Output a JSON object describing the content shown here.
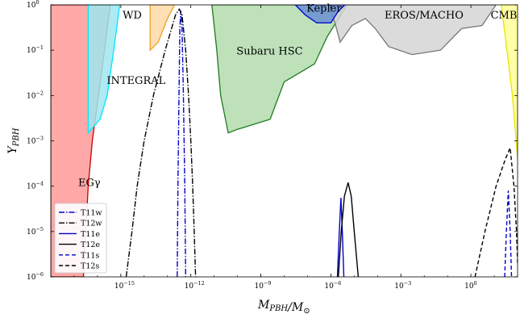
{
  "chart_data": {
    "type": "line",
    "xlabel": "M_PBH/M_⊙",
    "ylabel": "Y_PBH",
    "xscale": "log",
    "yscale": "log",
    "xlim": [
      1e-18,
      100
    ],
    "ylim": [
      1e-06,
      1
    ],
    "xticks": [
      {
        "value": 1e-15,
        "mant": "10",
        "exp": "−15"
      },
      {
        "value": 1e-12,
        "mant": "10",
        "exp": "−12"
      },
      {
        "value": 1e-09,
        "mant": "10",
        "exp": "−9"
      },
      {
        "value": 1e-06,
        "mant": "10",
        "exp": "−6"
      },
      {
        "value": 0.001,
        "mant": "10",
        "exp": "−3"
      },
      {
        "value": 1,
        "mant": "10",
        "exp": "0"
      },
      {
        "value": 1000,
        "mant": "10",
        "exp": "3"
      }
    ],
    "yticks": [
      {
        "value": 1e-06,
        "mant": "10",
        "exp": "−6"
      },
      {
        "value": 1e-05,
        "mant": "10",
        "exp": "−5"
      },
      {
        "value": 0.0001,
        "mant": "10",
        "exp": "−4"
      },
      {
        "value": 0.001,
        "mant": "10",
        "exp": "−3"
      },
      {
        "value": 0.01,
        "mant": "10",
        "exp": "−2"
      },
      {
        "value": 0.1,
        "mant": "10",
        "exp": "−1"
      },
      {
        "value": 1,
        "mant": "10",
        "exp": "0"
      }
    ],
    "legend_position": "lower-left",
    "constraints": [
      {
        "name": "EGγ",
        "fill": "#ff9999",
        "edge": "#cc0000",
        "points": [
          [
            1e-18,
            1e-06
          ],
          [
            2.5e-17,
            1e-06
          ],
          [
            4e-17,
            0.0001
          ],
          [
            6e-17,
            0.001
          ],
          [
            1.1e-16,
            0.01
          ],
          [
            2e-16,
            0.1
          ],
          [
            3.5e-16,
            1
          ],
          [
            1e-18,
            1
          ]
        ]
      },
      {
        "name": "INTEGRAL",
        "fill": "#9fe6ee",
        "edge": "#00e5ff",
        "points": [
          [
            4e-17,
            0.0015
          ],
          [
            1.3e-16,
            0.003
          ],
          [
            2.6e-16,
            0.01
          ],
          [
            5e-16,
            0.1
          ],
          [
            9e-16,
            1
          ],
          [
            4e-17,
            1
          ]
        ]
      },
      {
        "name": "WD",
        "fill": "#ffd9a6",
        "edge": "#f0a020",
        "points": [
          [
            1.8e-14,
            1
          ],
          [
            1.8e-14,
            0.1
          ],
          [
            4e-14,
            0.15
          ],
          [
            1e-13,
            0.5
          ],
          [
            2e-13,
            1
          ]
        ]
      },
      {
        "name": "Subaru HSC",
        "fill": "#b3dcae",
        "edge": "#1f7a1f",
        "points": [
          [
            8e-12,
            1
          ],
          [
            1.3e-11,
            0.1
          ],
          [
            1.9e-11,
            0.01
          ],
          [
            4e-11,
            0.0015
          ],
          [
            1e-10,
            0.0018
          ],
          [
            2.5e-09,
            0.003
          ],
          [
            1e-08,
            0.02
          ],
          [
            2e-07,
            0.05
          ],
          [
            7e-07,
            0.2
          ],
          [
            5e-06,
            1
          ]
        ]
      },
      {
        "name": "EROS/MACHO",
        "fill": "#d5d5d5",
        "edge": "#777777",
        "points": [
          [
            8e-07,
            1
          ],
          [
            1.5e-06,
            0.4
          ],
          [
            2.5e-06,
            0.15
          ],
          [
            8e-06,
            0.35
          ],
          [
            3e-05,
            0.5
          ],
          [
            8e-05,
            0.3
          ],
          [
            0.0003,
            0.12
          ],
          [
            0.003,
            0.08
          ],
          [
            0.05,
            0.1
          ],
          [
            0.4,
            0.3
          ],
          [
            3,
            0.35
          ],
          [
            12,
            1
          ]
        ]
      },
      {
        "name": "Kepler",
        "fill": "#6b8fd6",
        "edge": "#0000cc",
        "points": [
          [
            3e-08,
            1
          ],
          [
            8e-08,
            0.6
          ],
          [
            2.5e-07,
            0.4
          ],
          [
            1e-06,
            0.4
          ],
          [
            2e-06,
            0.7
          ],
          [
            4e-06,
            1
          ]
        ]
      },
      {
        "name": "CMB",
        "fill": "#ffff99",
        "edge": "#e6e600",
        "points": [
          [
            20,
            1
          ],
          [
            35,
            0.1
          ],
          [
            60,
            0.01
          ],
          [
            100,
            0.0004
          ],
          [
            100,
            1
          ]
        ]
      }
    ],
    "constraint_labels": [
      {
        "text": "EGγ",
        "x": 1.5e-17,
        "y": 0.0001
      },
      {
        "text": "INTEGRAL",
        "x": 2.5e-16,
        "y": 0.018
      },
      {
        "text": "WD",
        "x": 1.2e-15,
        "y": 0.5
      },
      {
        "text": "Subaru HSC",
        "x": 9e-11,
        "y": 0.08
      },
      {
        "text": "Kepler",
        "x": 9e-08,
        "y": 0.7
      },
      {
        "text": "EROS/MACHO",
        "x": 0.0002,
        "y": 0.5
      },
      {
        "text": "CMB",
        "x": 7,
        "y": 0.5
      }
    ],
    "series": [
      {
        "name": "T11w",
        "color": "#0000cc",
        "dash": "7,2,1.5,2",
        "points": [
          [
            2.6e-13,
            1e-06
          ],
          [
            2.8e-13,
            0.0001
          ],
          [
            3.1e-13,
            0.01
          ],
          [
            3.4e-13,
            0.3
          ],
          [
            3.7e-13,
            0.75
          ],
          [
            4.2e-13,
            0.3
          ],
          [
            4.8e-13,
            0.01
          ],
          [
            5.5e-13,
            0.0001
          ],
          [
            6e-13,
            1e-06
          ]
        ]
      },
      {
        "name": "T12w",
        "color": "#000000",
        "dash": "7,2,1.5,2",
        "points": [
          [
            1.7e-15,
            1e-06
          ],
          [
            3e-15,
            1e-05
          ],
          [
            5e-15,
            0.0001
          ],
          [
            1e-14,
            0.001
          ],
          [
            2.5e-14,
            0.01
          ],
          [
            8e-14,
            0.1
          ],
          [
            2.2e-13,
            0.6
          ],
          [
            3.2e-13,
            0.8
          ],
          [
            4.2e-13,
            0.6
          ],
          [
            6e-13,
            0.1
          ],
          [
            8e-13,
            0.01
          ],
          [
            1e-12,
            0.001
          ],
          [
            1.2e-12,
            0.0001
          ],
          [
            1.4e-12,
            1e-05
          ],
          [
            1.6e-12,
            1e-06
          ]
        ]
      },
      {
        "name": "T11e",
        "color": "#0000cc",
        "dash": "",
        "points": [
          [
            1.9e-06,
            1e-06
          ],
          [
            2.3e-06,
            1e-05
          ],
          [
            2.7e-06,
            5.5e-05
          ],
          [
            3.1e-06,
            1e-05
          ],
          [
            3.6e-06,
            1e-06
          ]
        ]
      },
      {
        "name": "T12e",
        "color": "#000000",
        "dash": "",
        "points": [
          [
            2.1e-06,
            1e-06
          ],
          [
            2.8e-06,
            1e-05
          ],
          [
            3.8e-06,
            6e-05
          ],
          [
            5.5e-06,
            0.00012
          ],
          [
            7.5e-06,
            6e-05
          ],
          [
            1e-05,
            1e-05
          ],
          [
            1.5e-05,
            1e-06
          ]
        ]
      },
      {
        "name": "T11s",
        "color": "#0000cc",
        "dash": "5,3",
        "points": [
          [
            28,
            1e-06
          ],
          [
            33,
            1e-05
          ],
          [
            40,
            8e-05
          ],
          [
            48,
            1e-05
          ],
          [
            55,
            1e-06
          ]
        ]
      },
      {
        "name": "T12s",
        "color": "#000000",
        "dash": "5,3",
        "points": [
          [
            1.5,
            1e-06
          ],
          [
            4,
            1e-05
          ],
          [
            12,
            0.0001
          ],
          [
            30,
            0.0004
          ],
          [
            48,
            0.0007
          ],
          [
            70,
            0.0001
          ],
          [
            90,
            1e-05
          ],
          [
            100,
            2e-06
          ]
        ]
      }
    ]
  }
}
